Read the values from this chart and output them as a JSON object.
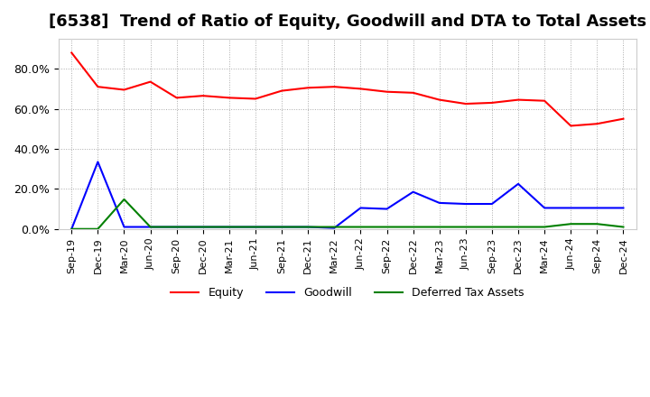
{
  "title": "[6538]  Trend of Ratio of Equity, Goodwill and DTA to Total Assets",
  "x_labels": [
    "Sep-19",
    "Dec-19",
    "Mar-20",
    "Jun-20",
    "Sep-20",
    "Dec-20",
    "Mar-21",
    "Jun-21",
    "Sep-21",
    "Dec-21",
    "Mar-22",
    "Jun-22",
    "Sep-22",
    "Dec-22",
    "Mar-23",
    "Jun-23",
    "Sep-23",
    "Dec-23",
    "Mar-24",
    "Jun-24",
    "Sep-24",
    "Dec-24"
  ],
  "equity": [
    0.88,
    0.71,
    0.695,
    0.735,
    0.655,
    0.665,
    0.655,
    0.65,
    0.69,
    0.705,
    0.71,
    0.7,
    0.685,
    0.68,
    0.645,
    0.625,
    0.63,
    0.645,
    0.64,
    0.515,
    0.525,
    0.55
  ],
  "goodwill": [
    0.0,
    0.335,
    0.01,
    0.01,
    0.01,
    0.01,
    0.01,
    0.01,
    0.01,
    0.01,
    0.005,
    0.105,
    0.1,
    0.185,
    0.13,
    0.125,
    0.125,
    0.225,
    0.105,
    0.105,
    0.105,
    0.105
  ],
  "dta": [
    0.0,
    0.0,
    0.148,
    0.01,
    0.01,
    0.01,
    0.01,
    0.01,
    0.01,
    0.01,
    0.01,
    0.01,
    0.01,
    0.01,
    0.01,
    0.01,
    0.01,
    0.01,
    0.01,
    0.025,
    0.025,
    0.01
  ],
  "equity_color": "#ff0000",
  "goodwill_color": "#0000ff",
  "dta_color": "#008000",
  "background_color": "#ffffff",
  "grid_color": "#aaaaaa",
  "ylim": [
    0.0,
    0.95
  ],
  "yticks": [
    0.0,
    0.2,
    0.4,
    0.6,
    0.8
  ],
  "title_fontsize": 13,
  "legend_labels": [
    "Equity",
    "Goodwill",
    "Deferred Tax Assets"
  ]
}
